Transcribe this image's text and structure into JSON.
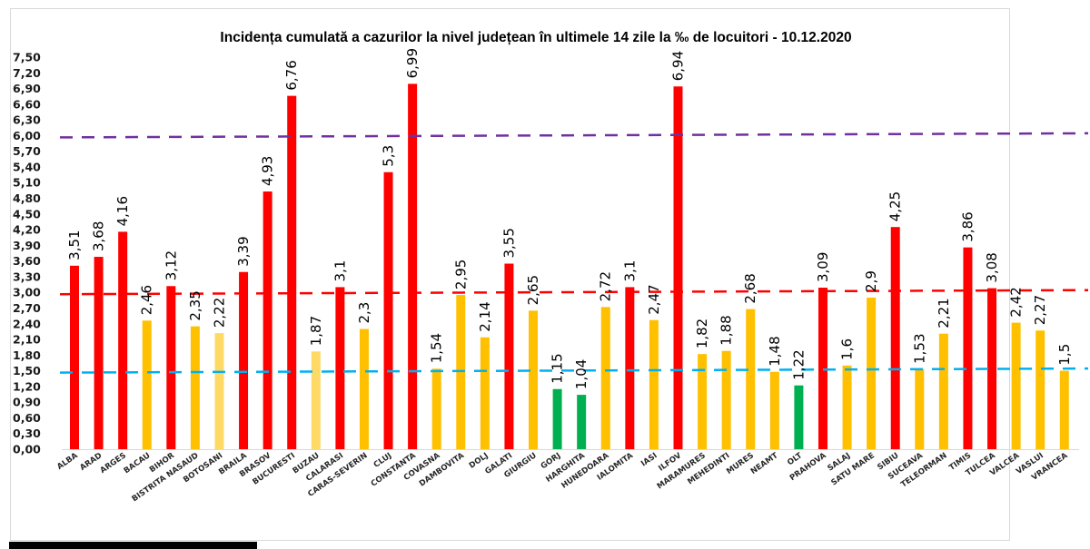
{
  "chart_data": {
    "type": "bar",
    "title": "Incidența cumulată a cazurilor la nivel județean în ultimele 14 zile la ‰ de locuitori - 10.12.2020",
    "xlabel": "",
    "ylabel": "",
    "ylim": [
      0,
      7.5
    ],
    "y_tick_step": 0.3,
    "y_tick_labels": [
      "0,00",
      "0,30",
      "0,60",
      "0,90",
      "1,20",
      "1,50",
      "1,80",
      "2,10",
      "2,40",
      "2,70",
      "3,00",
      "3,30",
      "3,60",
      "3,90",
      "4,20",
      "4,50",
      "4,80",
      "5,10",
      "5,40",
      "5,70",
      "6,00",
      "6,30",
      "6,60",
      "6,90",
      "7,20",
      "7,50"
    ],
    "grid": false,
    "legend": "none",
    "categories": [
      "ALBA",
      "ARAD",
      "ARGES",
      "BACAU",
      "BIHOR",
      "BISTRITA NASAUD",
      "BOTOSANI",
      "BRAILA",
      "BRASOV",
      "BUCURESTI",
      "BUZAU",
      "CALARASI",
      "CARAS-SEVERIN",
      "CLUJ",
      "CONSTANTA",
      "COVASNA",
      "DAMBOVITA",
      "DOLJ",
      "GALATI",
      "GIURGIU",
      "GORJ",
      "HARGHITA",
      "HUNEDOARA",
      "IALOMITA",
      "IASI",
      "ILFOV",
      "MARAMURES",
      "MEHEDINTI",
      "MURES",
      "NEAMT",
      "OLT",
      "PRAHOVA",
      "SALAJ",
      "SATU MARE",
      "SIBIU",
      "SUCEAVA",
      "TELEORMAN",
      "TIMIS",
      "TULCEA",
      "VALCEA",
      "VASLUI",
      "VRANCEA"
    ],
    "values": [
      3.51,
      3.68,
      4.16,
      2.46,
      3.12,
      2.35,
      2.22,
      3.39,
      4.93,
      6.76,
      1.87,
      3.1,
      2.3,
      5.3,
      6.99,
      1.54,
      2.95,
      2.14,
      3.55,
      2.65,
      1.15,
      1.04,
      2.72,
      3.1,
      2.47,
      6.94,
      1.82,
      1.88,
      2.68,
      1.48,
      1.22,
      3.09,
      1.6,
      2.9,
      4.25,
      1.53,
      2.21,
      3.86,
      3.08,
      2.42,
      2.27,
      1.5
    ],
    "data_labels": [
      "3,51",
      "3,68",
      "4,16",
      "2,46",
      "3,12",
      "2,35",
      "2,22",
      "3,39",
      "4,93",
      "6,76",
      "1,87",
      "3,1",
      "2,3",
      "5,3",
      "6,99",
      "1,54",
      "2,95",
      "2,14",
      "3,55",
      "2,65",
      "1,15",
      "1,04",
      "2,72",
      "3,1",
      "2,47",
      "6,94",
      "1,82",
      "1,88",
      "2,68",
      "1,48",
      "1,22",
      "3,09",
      "1,6",
      "2,9",
      "4,25",
      "1,53",
      "2,21",
      "3,86",
      "3,08",
      "2,42",
      "2,27",
      "1,5"
    ],
    "bar_color_class": [
      "red",
      "red",
      "red",
      "orange",
      "red",
      "orange",
      "lightyellow",
      "red",
      "red",
      "red",
      "lightyellow",
      "red",
      "orange",
      "red",
      "red",
      "orange",
      "orange",
      "orange",
      "red",
      "orange",
      "green",
      "green",
      "orange",
      "red",
      "orange",
      "red",
      "orange",
      "orange",
      "orange",
      "orange",
      "green",
      "red",
      "orange",
      "orange",
      "red",
      "orange",
      "orange",
      "red",
      "red",
      "orange",
      "orange",
      "orange"
    ],
    "colors": {
      "red": "#ff0000",
      "orange": "#ffc000",
      "lightyellow": "#ffd966",
      "green": "#00b050"
    },
    "reference_lines": [
      {
        "name": "threshold-6",
        "value": 6.0,
        "color": "#7030a0",
        "style": "dashed"
      },
      {
        "name": "threshold-3",
        "value": 3.0,
        "color": "#ff0000",
        "style": "dashed"
      },
      {
        "name": "threshold-1.5",
        "value": 1.5,
        "color": "#00b0f0",
        "style": "dashed"
      }
    ]
  }
}
